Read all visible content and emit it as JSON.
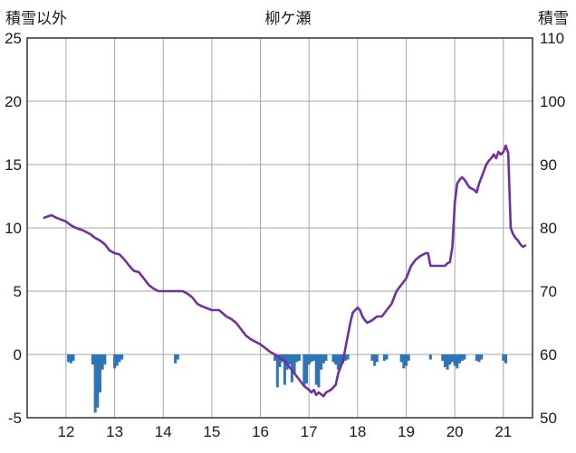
{
  "header": {
    "left_axis_label": "積雪以外",
    "title": "柳ケ瀬",
    "right_axis_label": "積雪"
  },
  "chart_data": {
    "type": "line",
    "title": "柳ケ瀬",
    "left_axis_title": "積雪以外",
    "right_axis_title": "積雪",
    "x_range": [
      11.2,
      21.6
    ],
    "y_left_range": [
      -5,
      25
    ],
    "y_right_range": [
      50,
      110
    ],
    "x_ticks": [
      12,
      13,
      14,
      15,
      16,
      17,
      18,
      19,
      20,
      21
    ],
    "y_left_ticks": [
      25,
      20,
      15,
      10,
      5,
      0,
      -5
    ],
    "y_right_ticks": [
      110,
      100,
      90,
      80,
      70,
      60,
      50
    ],
    "colors": {
      "line": "#7030a0",
      "bars": "#2e75b6",
      "grid": "#a6a6a6",
      "border": "#404040",
      "text": "#1a1a1a"
    },
    "series": [
      {
        "name": "line-purple",
        "axis": "left",
        "points": [
          [
            11.55,
            10.8
          ],
          [
            11.7,
            11.0
          ],
          [
            11.8,
            10.8
          ],
          [
            12.0,
            10.5
          ],
          [
            12.1,
            10.2
          ],
          [
            12.2,
            10.0
          ],
          [
            12.35,
            9.8
          ],
          [
            12.5,
            9.5
          ],
          [
            12.6,
            9.2
          ],
          [
            12.7,
            9.0
          ],
          [
            12.8,
            8.7
          ],
          [
            12.9,
            8.2
          ],
          [
            13.0,
            8.0
          ],
          [
            13.1,
            7.9
          ],
          [
            13.2,
            7.5
          ],
          [
            13.3,
            7.0
          ],
          [
            13.4,
            6.6
          ],
          [
            13.5,
            6.5
          ],
          [
            13.6,
            6.0
          ],
          [
            13.7,
            5.5
          ],
          [
            13.8,
            5.2
          ],
          [
            13.9,
            5.0
          ],
          [
            14.1,
            5.0
          ],
          [
            14.4,
            5.0
          ],
          [
            14.5,
            4.8
          ],
          [
            14.6,
            4.5
          ],
          [
            14.7,
            4.0
          ],
          [
            14.8,
            3.8
          ],
          [
            15.0,
            3.5
          ],
          [
            15.15,
            3.5
          ],
          [
            15.3,
            3.0
          ],
          [
            15.4,
            2.8
          ],
          [
            15.5,
            2.5
          ],
          [
            15.6,
            2.0
          ],
          [
            15.7,
            1.5
          ],
          [
            15.8,
            1.2
          ],
          [
            15.9,
            1.0
          ],
          [
            16.0,
            0.8
          ],
          [
            16.1,
            0.5
          ],
          [
            16.2,
            0.2
          ],
          [
            16.3,
            0.0
          ],
          [
            16.4,
            -0.3
          ],
          [
            16.5,
            -0.5
          ],
          [
            16.6,
            -1.0
          ],
          [
            16.7,
            -1.5
          ],
          [
            16.8,
            -2.0
          ],
          [
            16.9,
            -2.5
          ],
          [
            17.0,
            -2.8
          ],
          [
            17.05,
            -3.0
          ],
          [
            17.1,
            -2.8
          ],
          [
            17.15,
            -3.2
          ],
          [
            17.2,
            -3.0
          ],
          [
            17.3,
            -3.3
          ],
          [
            17.35,
            -3.0
          ],
          [
            17.45,
            -2.8
          ],
          [
            17.55,
            -2.4
          ],
          [
            17.6,
            -1.5
          ],
          [
            17.7,
            -0.5
          ],
          [
            17.75,
            0.5
          ],
          [
            17.8,
            1.5
          ],
          [
            17.85,
            2.5
          ],
          [
            17.9,
            3.3
          ],
          [
            17.95,
            3.5
          ],
          [
            18.0,
            3.7
          ],
          [
            18.05,
            3.5
          ],
          [
            18.1,
            3.0
          ],
          [
            18.15,
            2.7
          ],
          [
            18.2,
            2.5
          ],
          [
            18.3,
            2.7
          ],
          [
            18.4,
            3.0
          ],
          [
            18.5,
            3.0
          ],
          [
            18.6,
            3.5
          ],
          [
            18.7,
            4.0
          ],
          [
            18.8,
            5.0
          ],
          [
            18.9,
            5.5
          ],
          [
            19.0,
            6.0
          ],
          [
            19.05,
            6.5
          ],
          [
            19.1,
            7.0
          ],
          [
            19.2,
            7.5
          ],
          [
            19.3,
            7.8
          ],
          [
            19.4,
            8.0
          ],
          [
            19.45,
            8.0
          ],
          [
            19.5,
            7.0
          ],
          [
            19.65,
            7.0
          ],
          [
            19.8,
            7.0
          ],
          [
            19.85,
            7.2
          ],
          [
            19.9,
            7.3
          ],
          [
            19.95,
            8.5
          ],
          [
            20.0,
            12.0
          ],
          [
            20.05,
            13.5
          ],
          [
            20.1,
            13.8
          ],
          [
            20.15,
            14.0
          ],
          [
            20.2,
            13.8
          ],
          [
            20.25,
            13.5
          ],
          [
            20.3,
            13.2
          ],
          [
            20.4,
            13.0
          ],
          [
            20.45,
            12.8
          ],
          [
            20.5,
            13.5
          ],
          [
            20.55,
            14.0
          ],
          [
            20.6,
            14.5
          ],
          [
            20.65,
            15.0
          ],
          [
            20.7,
            15.3
          ],
          [
            20.75,
            15.5
          ],
          [
            20.8,
            15.8
          ],
          [
            20.85,
            15.5
          ],
          [
            20.9,
            16.0
          ],
          [
            20.95,
            15.8
          ],
          [
            21.0,
            16.0
          ],
          [
            21.05,
            16.5
          ],
          [
            21.1,
            15.9
          ],
          [
            21.15,
            10.0
          ],
          [
            21.2,
            9.5
          ],
          [
            21.25,
            9.2
          ],
          [
            21.3,
            9.0
          ],
          [
            21.35,
            8.7
          ],
          [
            21.4,
            8.5
          ],
          [
            21.45,
            8.6
          ]
        ]
      },
      {
        "name": "bars-blue",
        "axis": "left",
        "baseline": 0,
        "bars": [
          [
            12.05,
            -0.6
          ],
          [
            12.1,
            -0.7
          ],
          [
            12.15,
            -0.5
          ],
          [
            12.55,
            -0.8
          ],
          [
            12.6,
            -4.6
          ],
          [
            12.65,
            -4.2
          ],
          [
            12.7,
            -3.0
          ],
          [
            12.75,
            -1.2
          ],
          [
            12.8,
            -0.8
          ],
          [
            13.0,
            -1.1
          ],
          [
            13.05,
            -0.9
          ],
          [
            13.1,
            -0.6
          ],
          [
            13.15,
            -0.4
          ],
          [
            14.25,
            -0.7
          ],
          [
            14.3,
            -0.4
          ],
          [
            16.3,
            -0.5
          ],
          [
            16.35,
            -2.6
          ],
          [
            16.4,
            -1.0
          ],
          [
            16.45,
            -0.6
          ],
          [
            16.5,
            -2.4
          ],
          [
            16.55,
            -1.2
          ],
          [
            16.6,
            -0.8
          ],
          [
            16.65,
            -2.2
          ],
          [
            16.7,
            -1.5
          ],
          [
            16.75,
            -0.6
          ],
          [
            16.8,
            -0.5
          ],
          [
            16.9,
            -2.5
          ],
          [
            16.95,
            -2.3
          ],
          [
            17.0,
            -0.8
          ],
          [
            17.05,
            -0.6
          ],
          [
            17.1,
            -0.5
          ],
          [
            17.15,
            -2.4
          ],
          [
            17.2,
            -2.6
          ],
          [
            17.25,
            -1.2
          ],
          [
            17.3,
            -0.7
          ],
          [
            17.35,
            -0.5
          ],
          [
            17.5,
            -0.6
          ],
          [
            17.55,
            -0.8
          ],
          [
            17.6,
            -1.2
          ],
          [
            17.65,
            -1.0
          ],
          [
            17.7,
            -0.7
          ],
          [
            17.75,
            -0.5
          ],
          [
            17.8,
            -0.4
          ],
          [
            18.3,
            -0.5
          ],
          [
            18.35,
            -0.9
          ],
          [
            18.4,
            -0.6
          ],
          [
            18.55,
            -0.5
          ],
          [
            18.6,
            -0.4
          ],
          [
            18.9,
            -0.6
          ],
          [
            18.95,
            -1.1
          ],
          [
            19.0,
            -0.9
          ],
          [
            19.05,
            -0.5
          ],
          [
            19.5,
            -0.4
          ],
          [
            19.75,
            -0.5
          ],
          [
            19.8,
            -1.0
          ],
          [
            19.85,
            -1.2
          ],
          [
            19.9,
            -0.8
          ],
          [
            19.95,
            -0.6
          ],
          [
            20.0,
            -0.9
          ],
          [
            20.05,
            -1.1
          ],
          [
            20.1,
            -0.7
          ],
          [
            20.15,
            -0.5
          ],
          [
            20.2,
            -0.4
          ],
          [
            20.45,
            -0.5
          ],
          [
            20.5,
            -0.6
          ],
          [
            20.55,
            -0.4
          ],
          [
            21.0,
            -0.5
          ],
          [
            21.05,
            -0.7
          ]
        ]
      }
    ],
    "legend": "off",
    "grid": "on"
  }
}
